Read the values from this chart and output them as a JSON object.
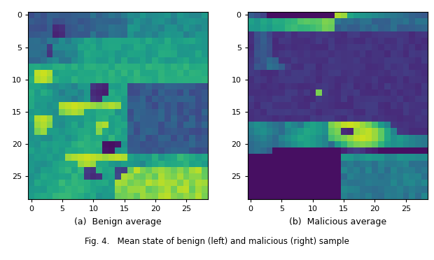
{
  "title_a": "(a)  Benign average",
  "title_b": "(b)  Malicious average",
  "cmap": "viridis",
  "rows": 29,
  "cols": 29,
  "tick_step": 5,
  "vmin": 0.0,
  "vmax": 1.0,
  "background_color": "#ffffff"
}
